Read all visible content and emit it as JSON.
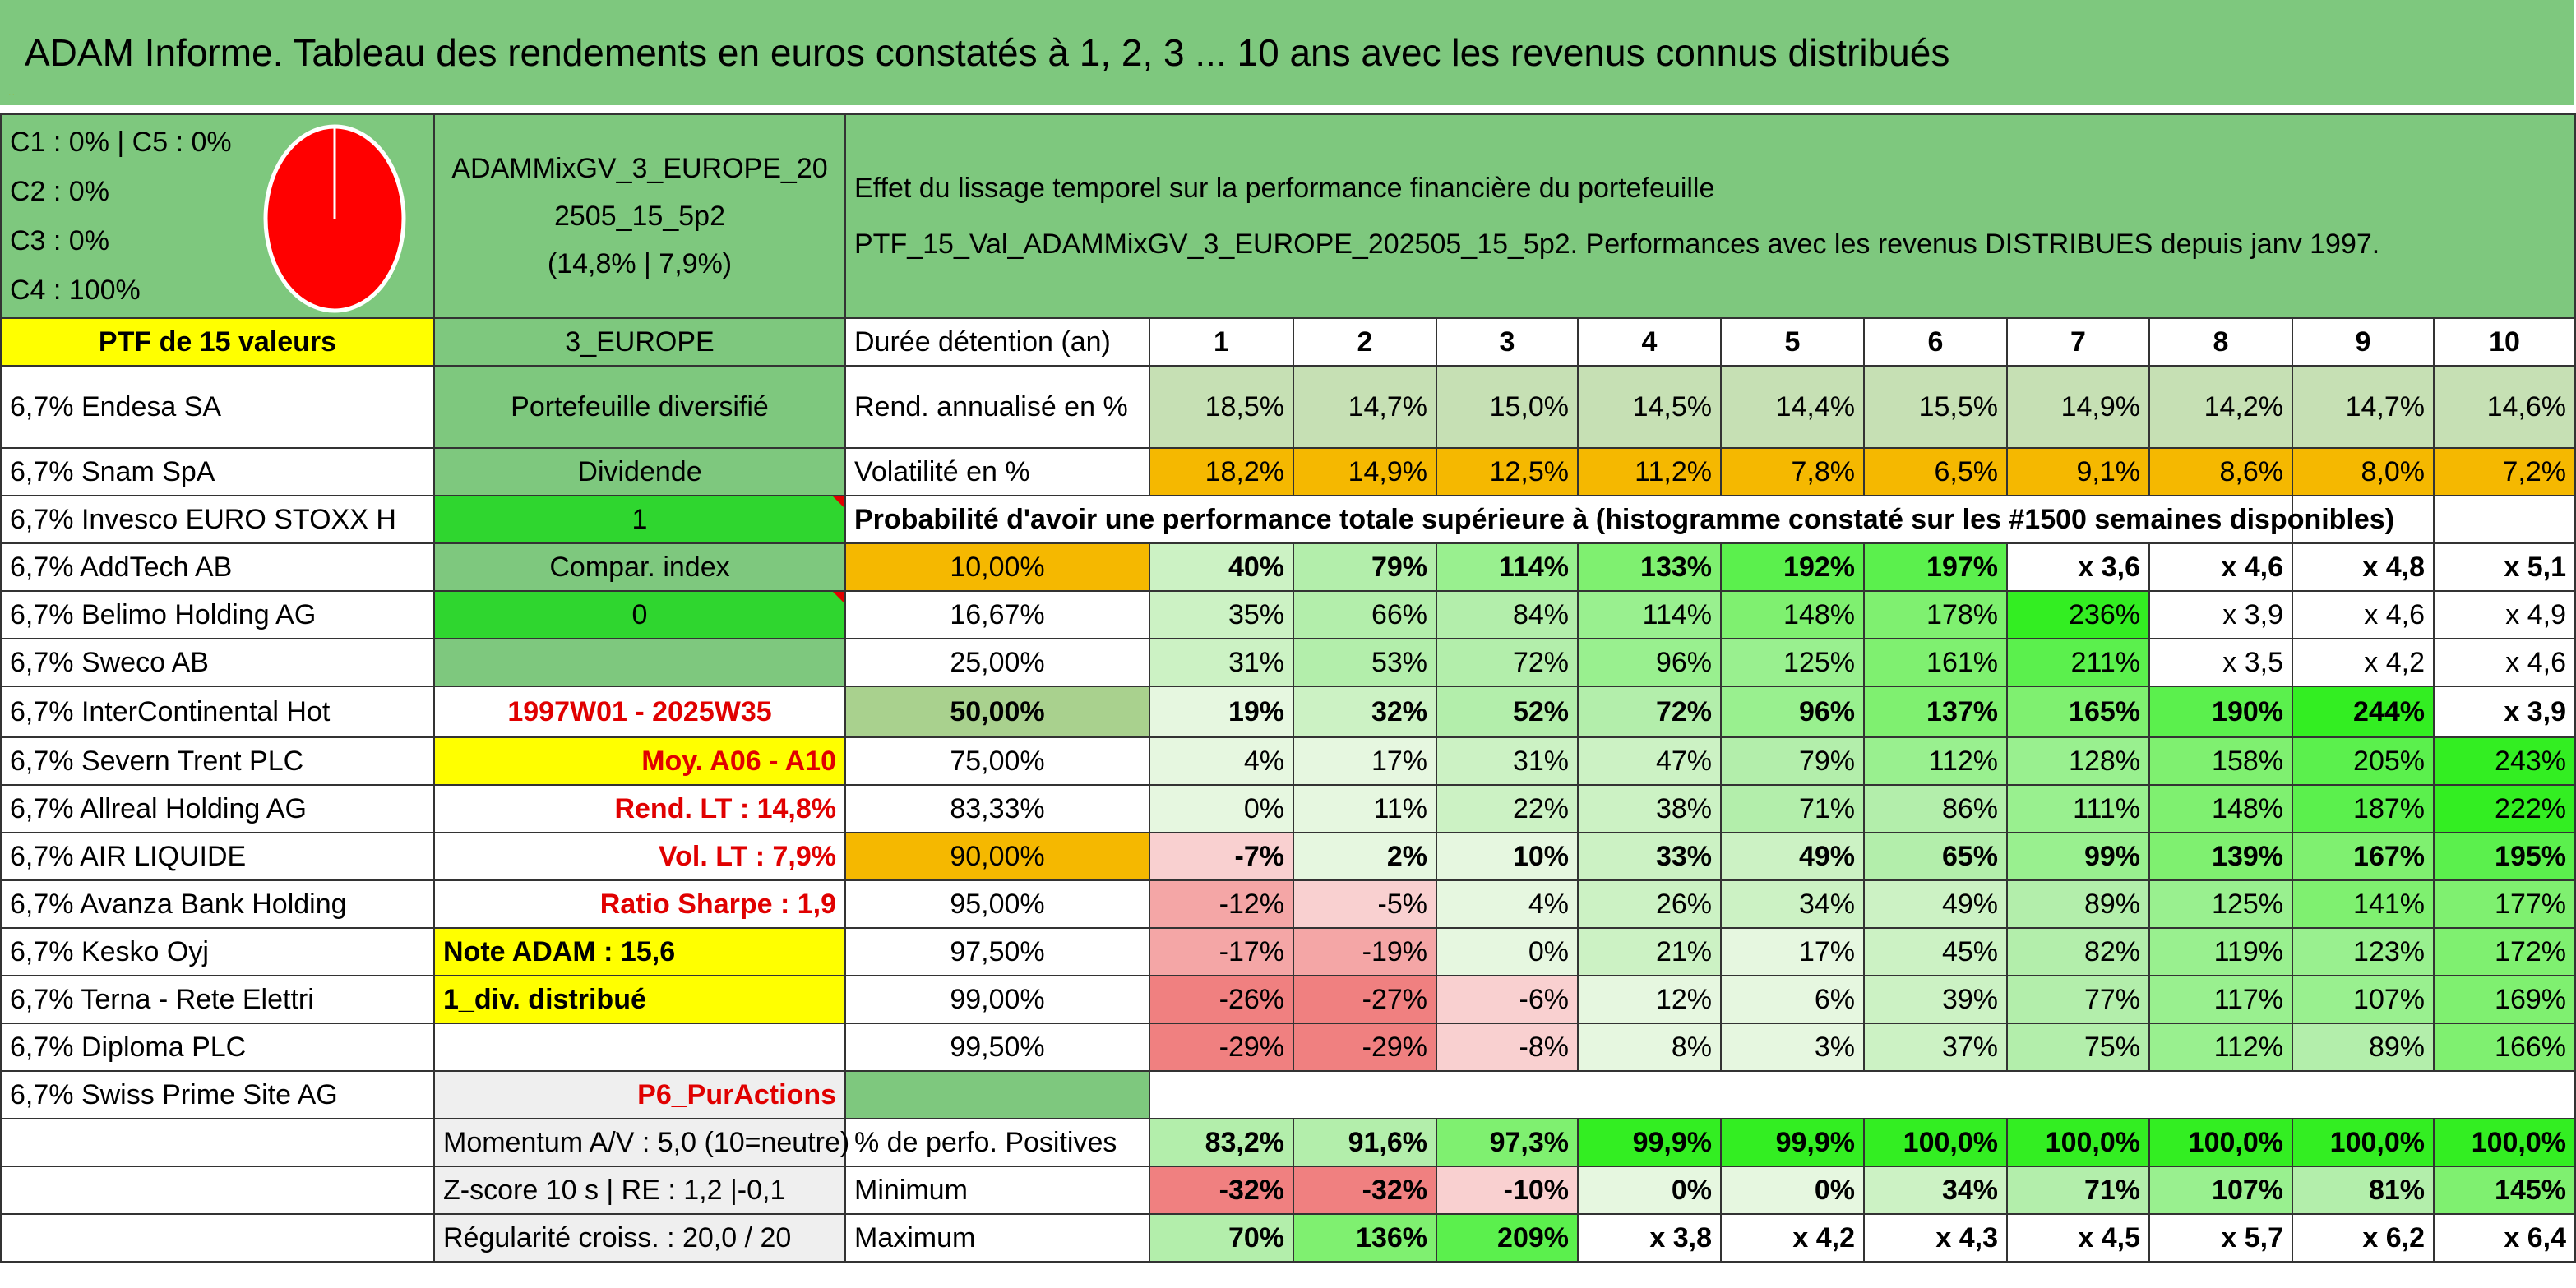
{
  "title": "ADAM Informe. Tableau des rendements en euros constatés à 1, 2, 3 ... 10 ans avec les revenus connus distribués",
  "composition": {
    "lines": [
      "C1 : 0% | C5 : 0%",
      "C2 : 0%",
      "C3 : 0%",
      "C4 : 100%"
    ],
    "pie_color": "#ff0000"
  },
  "portfolio": {
    "name_line1": "ADAMMixGV_3_EUROPE_20",
    "name_line2": "2505_15_5p2",
    "name_line3": "(14,8% | 7,9%)",
    "description_line1": "Effet du lissage temporel sur la performance financière du portefeuille",
    "description_line2": "PTF_15_Val_ADAMMixGV_3_EUROPE_202505_15_5p2. Performances avec les revenus DISTRIBUES depuis janv 1997."
  },
  "ptf_header": "PTF de 15 valeurs",
  "holdings": [
    "6,7% Endesa SA",
    "6,7% Snam SpA",
    "6,7% Invesco EURO STOXX H",
    "6,7% AddTech AB",
    "6,7% Belimo Holding AG",
    "6,7% Sweco AB",
    "6,7% InterContinental Hot",
    "6,7% Severn Trent PLC",
    "6,7% Allreal Holding AG",
    "6,7% AIR LIQUIDE",
    "6,7% Avanza Bank Holding",
    "6,7% Kesko Oyj",
    "6,7% Terna - Rete Elettri",
    "6,7% Diploma PLC",
    "6,7% Swiss Prime Site AG"
  ],
  "info": {
    "zone": "3_EUROPE",
    "type": "Portefeuille diversifié",
    "dividende_label": "Dividende",
    "dividende_value": "1",
    "compar_label": "Compar. index",
    "compar_value": "0",
    "period": "1997W01 - 2025W35",
    "moy": "Moy. A06 - A10",
    "rend_lt": "Rend. LT : 14,8%",
    "vol_lt": "Vol. LT : 7,9%",
    "sharpe": "Ratio Sharpe : 1,9",
    "note": "Note ADAM : 15,6",
    "div": "1_div. distribué",
    "pur": "P6_PurActions",
    "momentum": "Momentum A/V : 5,0 (10=neutre)",
    "zscore": "Z-score 10 s | RE : 1,2 |-0,1",
    "regularite": "Régularité croiss. : 20,0 / 20"
  },
  "table": {
    "duration_label": "Durée détention (an)",
    "years": [
      "1",
      "2",
      "3",
      "4",
      "5",
      "6",
      "7",
      "8",
      "9",
      "10"
    ],
    "rend_label": "Rend. annualisé en %",
    "rend": [
      "18,5%",
      "14,7%",
      "15,0%",
      "14,5%",
      "14,4%",
      "15,5%",
      "14,9%",
      "14,2%",
      "14,7%",
      "14,6%"
    ],
    "vol_label": "Volatilité en %",
    "vol": [
      "18,2%",
      "14,9%",
      "12,5%",
      "11,2%",
      "7,8%",
      "6,5%",
      "9,1%",
      "8,6%",
      "8,0%",
      "7,2%"
    ],
    "prob_label": "Probabilité d'avoir une performance totale supérieure à (histogramme constaté sur les #1500 semaines disponibles)",
    "quantiles": [
      {
        "p": "10,00%",
        "v": [
          "40%",
          "79%",
          "114%",
          "133%",
          "192%",
          "197%",
          "x 3,6",
          "x 4,6",
          "x 4,8",
          "x 5,1"
        ]
      },
      {
        "p": "16,67%",
        "v": [
          "35%",
          "66%",
          "84%",
          "114%",
          "148%",
          "178%",
          "236%",
          "x 3,9",
          "x 4,6",
          "x 4,9"
        ]
      },
      {
        "p": "25,00%",
        "v": [
          "31%",
          "53%",
          "72%",
          "96%",
          "125%",
          "161%",
          "211%",
          "x 3,5",
          "x 4,2",
          "x 4,6"
        ]
      },
      {
        "p": "50,00%",
        "v": [
          "19%",
          "32%",
          "52%",
          "72%",
          "96%",
          "137%",
          "165%",
          "190%",
          "244%",
          "x 3,9"
        ]
      },
      {
        "p": "75,00%",
        "v": [
          "4%",
          "17%",
          "31%",
          "47%",
          "79%",
          "112%",
          "128%",
          "158%",
          "205%",
          "243%"
        ]
      },
      {
        "p": "83,33%",
        "v": [
          "0%",
          "11%",
          "22%",
          "38%",
          "71%",
          "86%",
          "111%",
          "148%",
          "187%",
          "222%"
        ]
      },
      {
        "p": "90,00%",
        "v": [
          "-7%",
          "2%",
          "10%",
          "33%",
          "49%",
          "65%",
          "99%",
          "139%",
          "167%",
          "195%"
        ]
      },
      {
        "p": "95,00%",
        "v": [
          "-12%",
          "-5%",
          "4%",
          "26%",
          "34%",
          "49%",
          "89%",
          "125%",
          "141%",
          "177%"
        ]
      },
      {
        "p": "97,50%",
        "v": [
          "-17%",
          "-19%",
          "0%",
          "21%",
          "17%",
          "45%",
          "82%",
          "119%",
          "123%",
          "172%"
        ]
      },
      {
        "p": "99,00%",
        "v": [
          "-26%",
          "-27%",
          "-6%",
          "12%",
          "6%",
          "39%",
          "77%",
          "117%",
          "107%",
          "169%"
        ]
      },
      {
        "p": "99,50%",
        "v": [
          "-29%",
          "-29%",
          "-8%",
          "8%",
          "3%",
          "37%",
          "75%",
          "112%",
          "89%",
          "166%"
        ]
      }
    ],
    "positive_label": "% de perfo. Positives",
    "positive": [
      "83,2%",
      "91,6%",
      "97,3%",
      "99,9%",
      "99,9%",
      "100,0%",
      "100,0%",
      "100,0%",
      "100,0%",
      "100,0%"
    ],
    "min_label": "Minimum",
    "min": [
      "-32%",
      "-32%",
      "-10%",
      "0%",
      "0%",
      "34%",
      "71%",
      "107%",
      "81%",
      "145%"
    ],
    "max_label": "Maximum",
    "max": [
      "70%",
      "136%",
      "209%",
      "x 3,8",
      "x 4,2",
      "x 4,3",
      "x 4,5",
      "x 5,7",
      "x 6,2",
      "x 6,4"
    ]
  }
}
